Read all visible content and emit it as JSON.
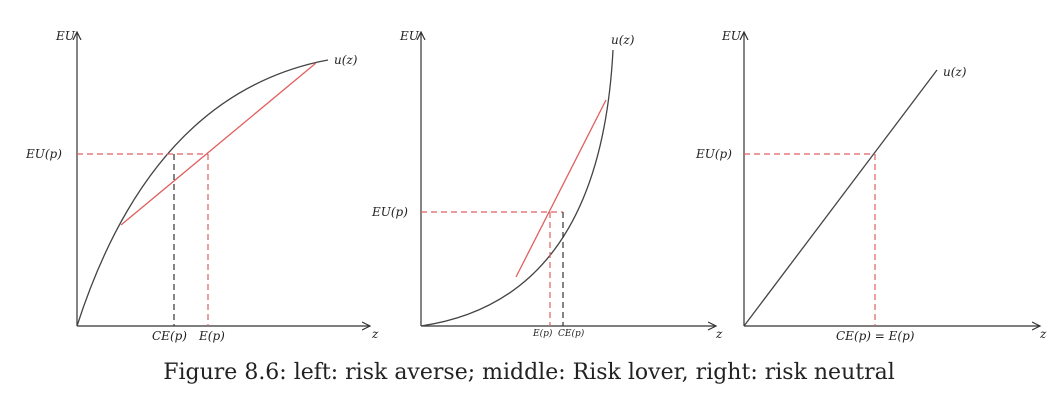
{
  "caption": "Figure 8.6: left: risk averse; middle: Risk lover, right: risk neutral",
  "panels": [
    {
      "y_axis_label": "EU",
      "x_axis_label": "z",
      "curve_label": "u(z)",
      "eu_label": "EU(p)",
      "ce_label": "CE(p)",
      "e_label": "E(p)"
    },
    {
      "y_axis_label": "EU",
      "x_axis_label": "z",
      "curve_label": "u(z)",
      "eu_label": "EU(p)",
      "ce_label": "CE(p)",
      "e_label": "E(p)"
    },
    {
      "y_axis_label": "EU",
      "x_axis_label": "z",
      "curve_label": "u(z)",
      "eu_label": "EU(p)",
      "ce_e_label": "CE(p) = E(p)"
    }
  ],
  "colors": {
    "chord": "#e06060",
    "curve": "#444444",
    "axis": "#333333"
  }
}
